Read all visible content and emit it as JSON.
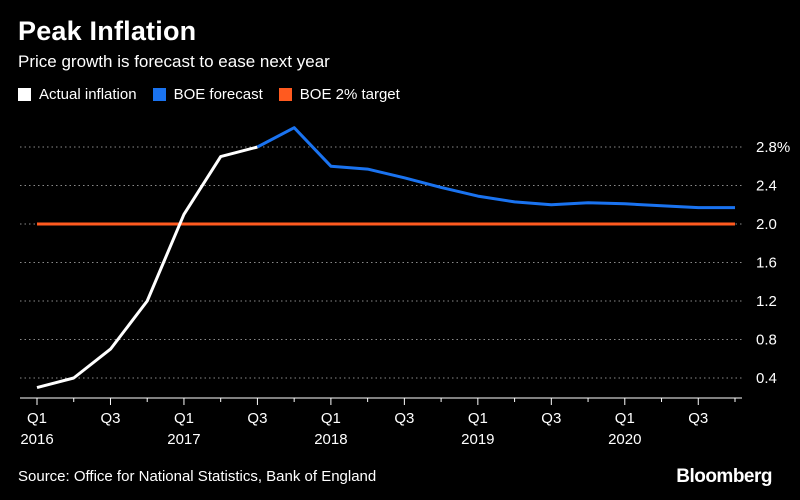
{
  "header": {
    "title": "Peak Inflation",
    "subtitle": "Price growth is forecast to ease next year"
  },
  "legend": [
    {
      "label": "Actual inflation",
      "color": "#ffffff"
    },
    {
      "label": "BOE forecast",
      "color": "#1a73f0"
    },
    {
      "label": "BOE 2% target",
      "color": "#ff5a1f"
    }
  ],
  "footer": {
    "source": "Source: Office for National Statistics, Bank of England",
    "brand": "Bloomberg"
  },
  "chart_data": {
    "type": "line",
    "title": "Peak Inflation",
    "subtitle": "Price growth is forecast to ease next year",
    "ylim": [
      0.2,
      3.05
    ],
    "y_ticks": [
      0.4,
      0.8,
      1.2,
      1.6,
      2.0,
      2.4,
      2.8
    ],
    "y_tick_labels": [
      "0.4",
      "0.8",
      "1.2",
      "1.6",
      "2.0",
      "2.4",
      "2.8%"
    ],
    "y_axis_side": "right",
    "grid": true,
    "x_range": [
      0,
      19
    ],
    "x_ticks": [
      {
        "i": 0,
        "line1": "Q1",
        "line2": "2016"
      },
      {
        "i": 2,
        "line1": "Q3",
        "line2": ""
      },
      {
        "i": 4,
        "line1": "Q1",
        "line2": "2017"
      },
      {
        "i": 6,
        "line1": "Q3",
        "line2": ""
      },
      {
        "i": 8,
        "line1": "Q1",
        "line2": "2018"
      },
      {
        "i": 10,
        "line1": "Q3",
        "line2": ""
      },
      {
        "i": 12,
        "line1": "Q1",
        "line2": "2019"
      },
      {
        "i": 14,
        "line1": "Q3",
        "line2": ""
      },
      {
        "i": 16,
        "line1": "Q1",
        "line2": "2020"
      },
      {
        "i": 18,
        "line1": "Q3",
        "line2": ""
      }
    ],
    "series": [
      {
        "name": "Actual inflation",
        "color": "#ffffff",
        "x": [
          0,
          1,
          2,
          3,
          4,
          5,
          6
        ],
        "values": [
          0.3,
          0.4,
          0.7,
          1.2,
          2.1,
          2.7,
          2.8
        ]
      },
      {
        "name": "BOE forecast",
        "color": "#1a73f0",
        "x": [
          6,
          7,
          8,
          9,
          10,
          11,
          12,
          13,
          14,
          15,
          16,
          17,
          18,
          19
        ],
        "values": [
          2.8,
          3.0,
          2.6,
          2.57,
          2.48,
          2.38,
          2.29,
          2.23,
          2.2,
          2.22,
          2.21,
          2.19,
          2.17,
          2.17
        ]
      },
      {
        "name": "BOE 2% target",
        "color": "#ff5a1f",
        "x": [
          0,
          19
        ],
        "values": [
          2.0,
          2.0
        ]
      }
    ]
  }
}
